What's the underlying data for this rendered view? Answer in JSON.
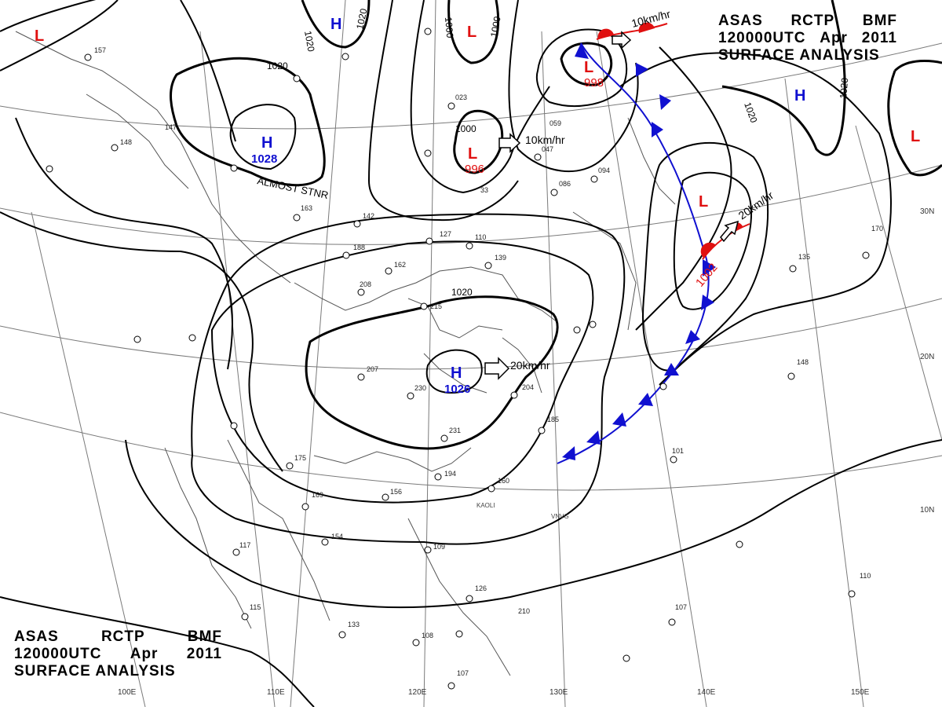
{
  "header": {
    "row1": [
      "ASAS",
      "RCTP",
      "BMF"
    ],
    "row2": [
      "120000UTC",
      "Apr",
      "2011"
    ],
    "row3": "SURFACE ANALYSIS"
  },
  "colors": {
    "high": "#1010d0",
    "low": "#e01010",
    "isobar": "#000000",
    "cold_front": "#1010d0",
    "warm_front": "#e01010",
    "grid": "#707070"
  },
  "longitude_labels": [
    "100E",
    "110E",
    "120E",
    "130E",
    "140E",
    "150E"
  ],
  "latitude_labels": [
    "30N",
    "20N",
    "10N"
  ],
  "pressure_centers": [
    {
      "type": "H",
      "value": "1028",
      "note": "ALMOST STNR"
    },
    {
      "type": "H",
      "value": "1026",
      "motion": "20km/hr"
    },
    {
      "type": "H",
      "value": ""
    },
    {
      "type": "H",
      "value": ""
    },
    {
      "type": "L",
      "value": "996",
      "motion": "10km/hr"
    },
    {
      "type": "L",
      "value": "998",
      "motion": "10km/hr"
    },
    {
      "type": "L",
      "value": "1002",
      "motion": "20km/hr"
    },
    {
      "type": "L",
      "value": ""
    },
    {
      "type": "L",
      "value": ""
    },
    {
      "type": "L",
      "value": ""
    }
  ],
  "isobar_labels": [
    "1020",
    "1020",
    "1020",
    "1020",
    "1000",
    "1000",
    "1000",
    "1020",
    "1020"
  ],
  "station_samples": [
    "207",
    "230",
    "231",
    "194",
    "160",
    "156",
    "169",
    "175",
    "154",
    "117",
    "115",
    "133",
    "108",
    "107",
    "126",
    "109",
    "185",
    "204",
    "215",
    "162",
    "142",
    "188",
    "208",
    "163",
    "127",
    "110",
    "139",
    "157",
    "148",
    "147",
    "101",
    "107",
    "110",
    "148",
    "170",
    "135",
    "33",
    "047",
    "059",
    "023",
    "094",
    "086",
    "210"
  ],
  "place_labels": [
    "KAOLI",
    "VNVG"
  ]
}
